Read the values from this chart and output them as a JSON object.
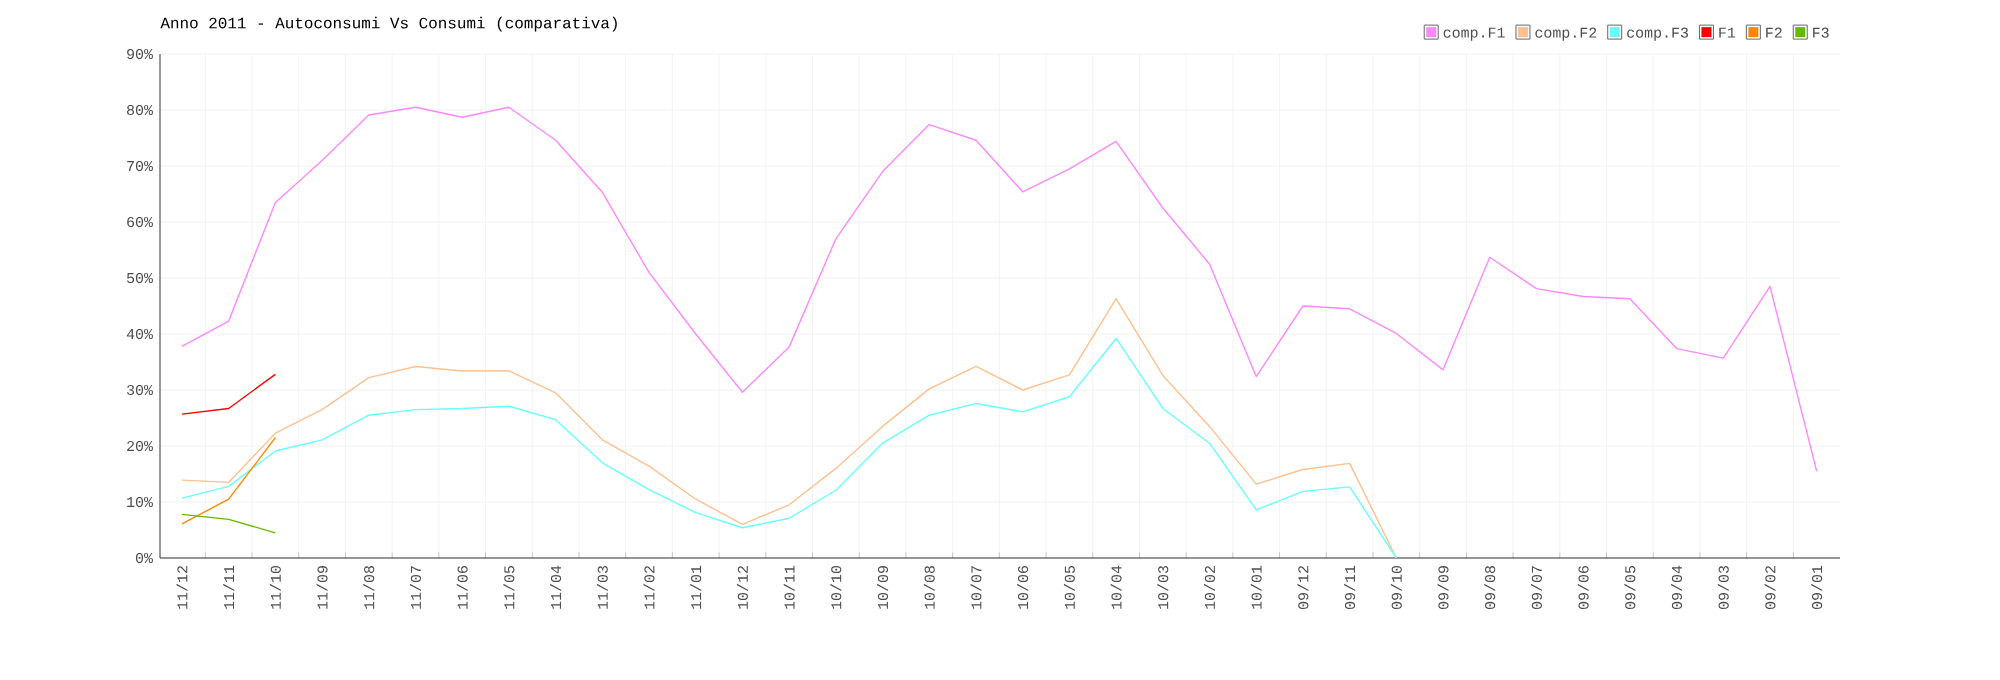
{
  "chart_data": {
    "type": "line",
    "title": "Anno 2011 - Autoconsumi Vs Consumi (comparativa)",
    "categories": [
      "11/12",
      "11/11",
      "11/10",
      "11/09",
      "11/08",
      "11/07",
      "11/06",
      "11/05",
      "11/04",
      "11/03",
      "11/02",
      "11/01",
      "10/12",
      "10/11",
      "10/10",
      "10/09",
      "10/08",
      "10/07",
      "10/06",
      "10/05",
      "10/04",
      "10/03",
      "10/02",
      "10/01",
      "09/12",
      "09/11",
      "09/10",
      "09/09",
      "09/08",
      "09/07",
      "09/06",
      "09/05",
      "09/04",
      "09/03",
      "09/02",
      "09/01"
    ],
    "series": [
      {
        "name": "comp.F1",
        "color": "#ff88ff",
        "values": [
          37.8,
          42.3,
          63.5,
          71,
          79.1,
          80.5,
          78.7,
          80.5,
          74.6,
          65.3,
          51,
          40,
          29.6,
          37.7,
          57,
          69,
          77.4,
          74.6,
          65.4,
          69.5,
          74.4,
          62.5,
          52.5,
          32.4,
          45,
          44.5,
          40.1,
          33.6,
          53.7,
          48.1,
          46.7,
          46.3,
          37.4,
          35.7,
          48.5,
          15.5
        ]
      },
      {
        "name": "comp.F2",
        "color": "#ffc090",
        "values": [
          13.9,
          13.5,
          22.3,
          26.5,
          32.2,
          34.2,
          33.4,
          33.4,
          29.5,
          21.1,
          16.4,
          10.5,
          6,
          9.5,
          16,
          23.5,
          30.2,
          34.2,
          30,
          32.7,
          46.3,
          32.6,
          23.5,
          13.2,
          15.8,
          16.9,
          0,
          null,
          null,
          null,
          null,
          null,
          null,
          null,
          null,
          null
        ]
      },
      {
        "name": "comp.F3",
        "color": "#66ffff",
        "values": [
          10.7,
          12.8,
          19.1,
          21.1,
          25.5,
          26.5,
          26.7,
          27.1,
          24.7,
          17,
          12.2,
          8.1,
          5.4,
          7.1,
          12.1,
          20.5,
          25.5,
          27.6,
          26.1,
          28.8,
          39.2,
          26.7,
          20.5,
          8.6,
          11.9,
          12.7,
          0,
          null,
          null,
          null,
          null,
          null,
          null,
          null,
          null,
          null
        ]
      },
      {
        "name": "F1",
        "color": "#ff0000",
        "values": [
          25.7,
          26.7,
          32.8,
          null,
          null,
          null,
          null,
          null,
          null,
          null,
          null,
          null,
          null,
          null,
          null,
          null,
          null,
          null,
          null,
          null,
          null,
          null,
          null,
          null,
          null,
          null,
          null,
          null,
          null,
          null,
          null,
          null,
          null,
          null,
          null,
          null
        ]
      },
      {
        "name": "F2",
        "color": "#ff8800",
        "values": [
          6.1,
          10.5,
          21.5,
          null,
          null,
          null,
          null,
          null,
          null,
          null,
          null,
          null,
          null,
          null,
          null,
          null,
          null,
          null,
          null,
          null,
          null,
          null,
          null,
          null,
          null,
          null,
          null,
          null,
          null,
          null,
          null,
          null,
          null,
          null,
          null,
          null
        ]
      },
      {
        "name": "F3",
        "color": "#66bb00",
        "values": [
          7.8,
          6.9,
          4.5,
          null,
          null,
          null,
          null,
          null,
          null,
          null,
          null,
          null,
          null,
          null,
          null,
          null,
          null,
          null,
          null,
          null,
          null,
          null,
          null,
          null,
          null,
          null,
          null,
          null,
          null,
          null,
          null,
          null,
          null,
          null,
          null,
          null
        ]
      }
    ],
    "ylim": [
      0,
      90
    ],
    "yticks": [
      {
        "value": 0,
        "label": "0%"
      },
      {
        "value": 10,
        "label": "10%"
      },
      {
        "value": 20,
        "label": "20%"
      },
      {
        "value": 30,
        "label": "30%"
      },
      {
        "value": 40,
        "label": "40%"
      },
      {
        "value": 50,
        "label": "50%"
      },
      {
        "value": 60,
        "label": "60%"
      },
      {
        "value": 70,
        "label": "70%"
      },
      {
        "value": 80,
        "label": "80%"
      },
      {
        "value": 90,
        "label": "90%"
      }
    ],
    "grid": true,
    "legend": "top right",
    "marker": "none",
    "line_style": "solid"
  }
}
